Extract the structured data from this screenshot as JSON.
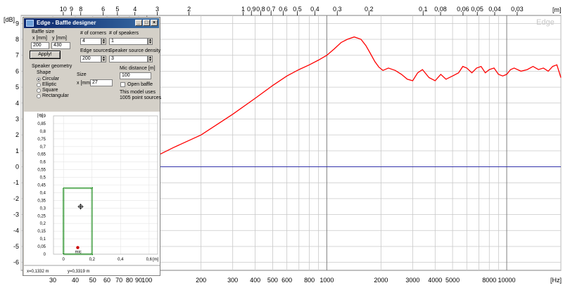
{
  "chart": {
    "y_unit": "[dB]",
    "x_unit": "[Hz]",
    "top_unit": "[m]",
    "watermark": "Edge",
    "line_color": "#ff0000",
    "ref_line_color": "#3333aa"
  },
  "chart_data": {
    "type": "line",
    "xscale": "log",
    "xlim": [
      20,
      20000
    ],
    "ylim": [
      -6.5,
      9.5
    ],
    "grid": true,
    "y_ticks": [
      -6,
      -5,
      -4,
      -3,
      -2,
      -1,
      0,
      1,
      2,
      3,
      4,
      5,
      6,
      7,
      8,
      9
    ],
    "x_tick_labels": [
      {
        "v": 30,
        "t": "30"
      },
      {
        "v": 40,
        "t": "40"
      },
      {
        "v": 50,
        "t": "50"
      },
      {
        "v": 60,
        "t": "60"
      },
      {
        "v": 70,
        "t": "70"
      },
      {
        "v": 80,
        "t": "80"
      },
      {
        "v": 90,
        "t": "90"
      },
      {
        "v": 100,
        "t": "100"
      },
      {
        "v": 200,
        "t": "200"
      },
      {
        "v": 300,
        "t": "300"
      },
      {
        "v": 400,
        "t": "400"
      },
      {
        "v": 500,
        "t": "500"
      },
      {
        "v": 600,
        "t": "600"
      },
      {
        "v": 800,
        "t": "800"
      },
      {
        "v": 1000,
        "t": "1000"
      },
      {
        "v": 2000,
        "t": "2000"
      },
      {
        "v": 3000,
        "t": "3000"
      },
      {
        "v": 4000,
        "t": "4000"
      },
      {
        "v": 5000,
        "t": "5000"
      },
      {
        "v": 8000,
        "t": "8000"
      },
      {
        "v": 10000,
        "t": "10000"
      }
    ],
    "top_tick_labels": [
      {
        "v": 34.3,
        "t": "10"
      },
      {
        "v": 38.1,
        "t": "9"
      },
      {
        "v": 42.9,
        "t": "8"
      },
      {
        "v": 57.2,
        "t": "6"
      },
      {
        "v": 68.6,
        "t": "5"
      },
      {
        "v": 85.8,
        "t": "4"
      },
      {
        "v": 114.3,
        "t": "3"
      },
      {
        "v": 171.5,
        "t": "2"
      },
      {
        "v": 343,
        "t": "1"
      },
      {
        "v": 381,
        "t": "0,9"
      },
      {
        "v": 429,
        "t": "0,8"
      },
      {
        "v": 490,
        "t": "0,7"
      },
      {
        "v": 572,
        "t": "0,6"
      },
      {
        "v": 686,
        "t": "0,5"
      },
      {
        "v": 858,
        "t": "0,4"
      },
      {
        "v": 1143,
        "t": "0,3"
      },
      {
        "v": 1715,
        "t": "0,2"
      },
      {
        "v": 3430,
        "t": "0,1"
      },
      {
        "v": 4288,
        "t": "0,08"
      },
      {
        "v": 5717,
        "t": "0,06"
      },
      {
        "v": 6860,
        "t": "0,05"
      },
      {
        "v": 8575,
        "t": "0,04"
      },
      {
        "v": 11433,
        "t": "0,03"
      }
    ],
    "series": [
      {
        "color": "#ff0000",
        "points": [
          [
            114,
            0.7
          ],
          [
            140,
            1.2
          ],
          [
            200,
            2.0
          ],
          [
            300,
            3.3
          ],
          [
            400,
            4.3
          ],
          [
            500,
            5.1
          ],
          [
            600,
            5.7
          ],
          [
            700,
            6.1
          ],
          [
            800,
            6.4
          ],
          [
            900,
            6.7
          ],
          [
            1000,
            7.0
          ],
          [
            1100,
            7.4
          ],
          [
            1200,
            7.8
          ],
          [
            1300,
            8.0
          ],
          [
            1420,
            8.15
          ],
          [
            1550,
            8.0
          ],
          [
            1650,
            7.6
          ],
          [
            1750,
            7.1
          ],
          [
            1850,
            6.6
          ],
          [
            1950,
            6.25
          ],
          [
            2050,
            6.05
          ],
          [
            2200,
            6.2
          ],
          [
            2400,
            6.05
          ],
          [
            2600,
            5.8
          ],
          [
            2800,
            5.5
          ],
          [
            3000,
            5.4
          ],
          [
            3200,
            5.9
          ],
          [
            3400,
            6.1
          ],
          [
            3700,
            5.6
          ],
          [
            4000,
            5.4
          ],
          [
            4300,
            5.8
          ],
          [
            4600,
            5.5
          ],
          [
            5000,
            5.7
          ],
          [
            5400,
            5.9
          ],
          [
            5700,
            6.3
          ],
          [
            6000,
            6.2
          ],
          [
            6400,
            5.9
          ],
          [
            6800,
            6.2
          ],
          [
            7200,
            6.3
          ],
          [
            7600,
            5.9
          ],
          [
            8000,
            6.1
          ],
          [
            8500,
            6.2
          ],
          [
            9000,
            5.8
          ],
          [
            9500,
            5.7
          ],
          [
            10000,
            5.8
          ],
          [
            10500,
            6.1
          ],
          [
            11000,
            6.2
          ],
          [
            12000,
            6.0
          ],
          [
            13000,
            6.1
          ],
          [
            14000,
            6.3
          ],
          [
            15000,
            6.1
          ],
          [
            16000,
            6.2
          ],
          [
            17000,
            6.0
          ],
          [
            18000,
            6.3
          ],
          [
            19000,
            6.4
          ],
          [
            20000,
            5.6
          ]
        ]
      },
      {
        "color": "#3333aa",
        "points": [
          [
            114,
            0
          ],
          [
            20000,
            0
          ]
        ]
      }
    ]
  },
  "baffle_window": {
    "title": "Edge - Baffle designer",
    "baffle_size_label": "Baffle size",
    "x_mm_label": "x [mm]",
    "y_mm_label": "y [mm]",
    "x_value": "200",
    "y_value": "430",
    "apply_label": "Apply!",
    "corners_label": "# of corners",
    "corners_value": "4",
    "speakers_label": "# of speakers",
    "speakers_value": "1",
    "edge_sources_label": "Edge sources",
    "edge_sources_value": "200",
    "density_label": "Speaker source density",
    "density_value": "3",
    "geometry_label": "Speaker geometry",
    "shape_label": "Shape",
    "shape_options": [
      "Circular",
      "Elliptic",
      "Square",
      "Rectangular"
    ],
    "selected_shape": "Circular",
    "size_label": "Size",
    "size_x_label": "x [mm]",
    "size_x_value": "27",
    "mic_distance_label": "Mic distance [m]",
    "mic_distance_value": "100",
    "open_baffle_label": "Open baffle",
    "point_sources_line1": "This model uses",
    "point_sources_line2": "1005 point sources",
    "plot": {
      "y_unit": "[m]",
      "x_unit": "[m]",
      "y_ticks": [
        "0,9",
        "0,85",
        "0,8",
        "0,75",
        "0,7",
        "0,65",
        "0,6",
        "0,55",
        "0,5",
        "0,45",
        "0,4",
        "0,35",
        "0,3",
        "0,25",
        "0,2",
        "0,15",
        "0,1",
        "0,05",
        "0"
      ],
      "x_ticks": [
        "0",
        "0,2",
        "0,4",
        "0,6"
      ],
      "mic_label": "mic",
      "baffle_color": "#1a8c1a",
      "mic_color": "#cc0000"
    },
    "status_x": "x=0,1332 m",
    "status_y": "y=0,3319 m"
  }
}
